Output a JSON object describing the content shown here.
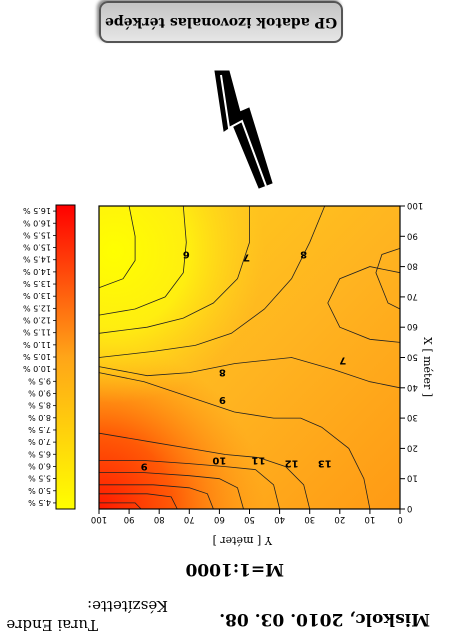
{
  "header": {
    "date": "Miskolc, 2010. 03. 08.",
    "author_label": "Készítette:",
    "author_name": "Turai Endre"
  },
  "scale": "M=1:1000",
  "caption": "GP adatok izovonalas térképe",
  "colors": {
    "high": "#ffff00",
    "low": "#ff0000",
    "frame": "#000000",
    "contour": "#222222"
  },
  "chart_data": {
    "type": "heatmap",
    "title": "",
    "xlabel": "Y [ méter ]",
    "ylabel": "X [ méter ]",
    "xlim": [
      0,
      100
    ],
    "ylim": [
      0,
      100
    ],
    "x_ticks": [
      "0",
      "10",
      "20",
      "30",
      "40",
      "50",
      "60",
      "70",
      "80",
      "90",
      "100"
    ],
    "y_ticks": [
      "0",
      "10",
      "20",
      "30",
      "40",
      "50",
      "60",
      "70",
      "80",
      "90",
      "100"
    ],
    "colorbar": {
      "labels": [
        "4.5 %",
        "5.0 %",
        "5.5 %",
        "6.0 %",
        "6.5 %",
        "7.0 %",
        "7.5 %",
        "8.0 %",
        "8.5 %",
        "9.0 %",
        "9.5 %",
        "10.0 %",
        "10.5 %",
        "11.0 %",
        "11.5 %",
        "12.0 %",
        "12.5 %",
        "13.0 %",
        "13.5 %",
        "14.0 %",
        "14.5 %",
        "15.0 %",
        "15.5 %",
        "16.0 %",
        "16.5 %"
      ],
      "min": 4.5,
      "max": 16.5
    },
    "contour_labels": [
      {
        "text": "6",
        "x": 71,
        "y": 84
      },
      {
        "text": "7",
        "x": 51,
        "y": 83
      },
      {
        "text": "8",
        "x": 32,
        "y": 84
      },
      {
        "text": "8",
        "x": 59,
        "y": 45
      },
      {
        "text": "9",
        "x": 59,
        "y": 36
      },
      {
        "text": "9",
        "x": 85,
        "y": 14
      },
      {
        "text": "10",
        "x": 60,
        "y": 16
      },
      {
        "text": "11",
        "x": 47,
        "y": 16
      },
      {
        "text": "12",
        "x": 36,
        "y": 15
      },
      {
        "text": "13",
        "x": 25,
        "y": 15
      },
      {
        "text": "7",
        "x": 19,
        "y": 49
      }
    ]
  }
}
